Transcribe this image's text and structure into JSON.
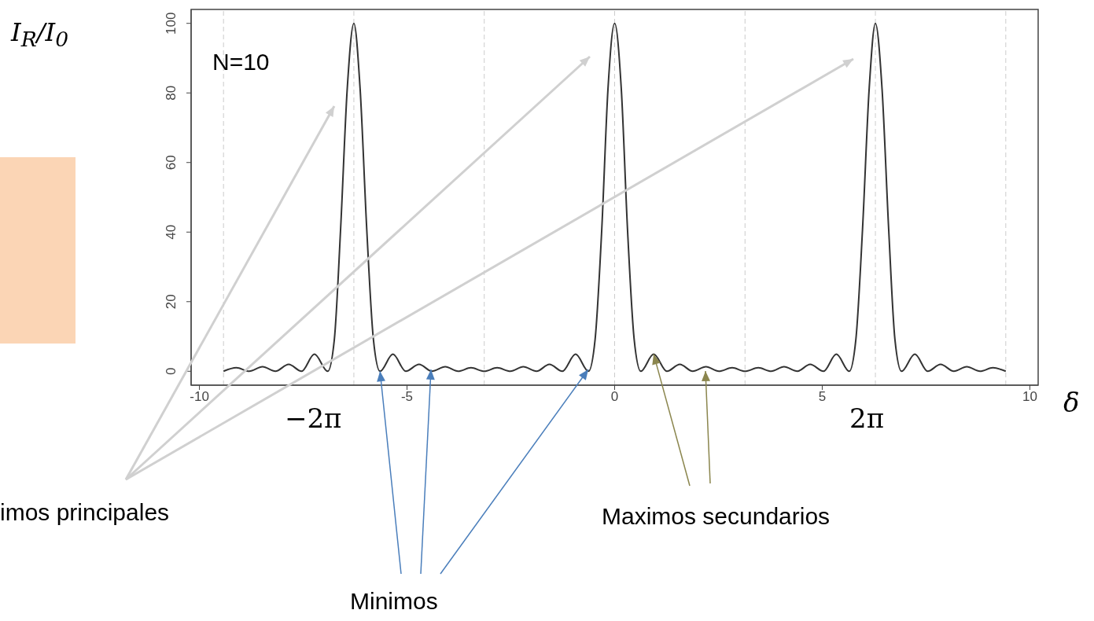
{
  "chart_data": {
    "type": "line",
    "xlabel": "δ",
    "ylabel": "I$_{R}$/I$_{0}$",
    "color": "#333333",
    "x": [
      -9.42,
      -9.11,
      -8.8,
      -8.48,
      -8.17,
      -7.85,
      -7.54,
      -7.23,
      -6.91,
      -6.75,
      -6.6,
      -6.44,
      -6.28,
      -6.13,
      -5.97,
      -5.81,
      -5.65,
      -5.34,
      -5.03,
      -4.71,
      -4.4,
      -4.08,
      -3.77,
      -3.46,
      -3.14,
      -2.83,
      -2.51,
      -2.2,
      -1.88,
      -1.57,
      -1.26,
      -0.94,
      -0.63,
      -0.47,
      -0.31,
      -0.16,
      0,
      0.16,
      0.31,
      0.47,
      0.63,
      0.94,
      1.26,
      1.57,
      1.88,
      2.2,
      2.51,
      2.83,
      3.14,
      3.46,
      3.77,
      4.08,
      4.4,
      4.71,
      5.03,
      5.34,
      5.65,
      5.81,
      5.97,
      6.13,
      6.28,
      6.44,
      6.6,
      6.75,
      6.91,
      7.23,
      7.54,
      7.85,
      8.17,
      8.48,
      8.8,
      9.11,
      9.42
    ],
    "values": [
      0,
      1,
      0,
      1.3,
      0,
      2,
      0,
      4.9,
      0,
      9.2,
      40.8,
      81.2,
      100,
      81.2,
      40.8,
      9.2,
      0,
      4.9,
      0,
      2,
      0,
      1.3,
      0,
      1,
      0,
      1,
      0,
      1.3,
      0,
      2,
      0,
      4.9,
      0,
      9.2,
      40.8,
      81.2,
      100,
      81.2,
      40.8,
      9.2,
      0,
      4.9,
      0,
      2,
      0,
      1.3,
      0,
      1,
      0,
      1,
      0,
      1.3,
      0,
      2,
      0,
      4.9,
      0,
      9.2,
      40.8,
      81.2,
      100,
      81.2,
      40.8,
      9.2,
      0,
      4.9,
      0,
      2,
      0,
      1.3,
      0,
      1,
      0
    ],
    "xlim": [
      -10.2,
      10.2
    ],
    "ylim": [
      -4,
      104
    ],
    "xticks": [
      -10,
      -5,
      0,
      5,
      10
    ],
    "yticks": [
      0,
      20,
      40,
      60,
      80,
      100
    ],
    "ref_lines": [
      {
        "axis": "x",
        "value": -9.42,
        "color": "#cccccc",
        "line_style": "dashed"
      },
      {
        "axis": "x",
        "value": -6.28,
        "color": "#cccccc",
        "line_style": "dashed"
      },
      {
        "axis": "x",
        "value": -3.14,
        "color": "#cccccc",
        "line_style": "dashed"
      },
      {
        "axis": "x",
        "value": 0,
        "color": "#cccccc",
        "line_style": "dashed"
      },
      {
        "axis": "x",
        "value": 3.14,
        "color": "#cccccc",
        "line_style": "dashed"
      },
      {
        "axis": "x",
        "value": 6.28,
        "color": "#cccccc",
        "line_style": "dashed"
      },
      {
        "axis": "x",
        "value": 9.42,
        "color": "#cccccc",
        "line_style": "dashed"
      }
    ],
    "annotations": [
      "N=10",
      "−2π",
      "2π",
      "imos principales",
      {
        "text": "Minimos",
        "x": -5.65,
        "y": 0
      },
      {
        "text": "Maximos secundarios",
        "x": 0.94,
        "y": 4.9
      }
    ]
  }
}
